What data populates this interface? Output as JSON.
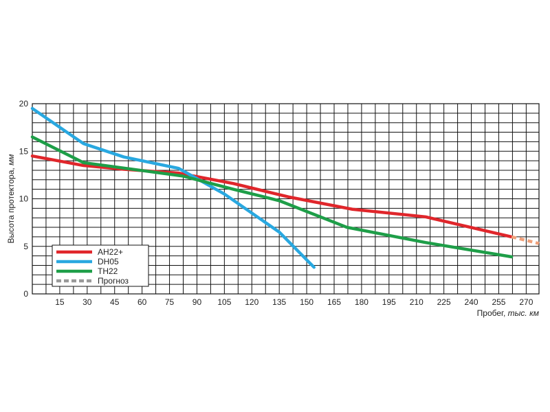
{
  "chart_data": {
    "type": "line",
    "title": "",
    "xlabel_main": "Пробег, ",
    "xlabel_unit": "тыс. км",
    "ylabel_main": "Высота протектора, ",
    "ylabel_unit": "мм",
    "xlim": [
      0,
      277
    ],
    "ylim": [
      0,
      20
    ],
    "x_ticks": [
      15,
      30,
      45,
      60,
      75,
      90,
      105,
      120,
      135,
      150,
      165,
      180,
      195,
      210,
      225,
      240,
      255,
      270
    ],
    "y_ticks": [
      0,
      5,
      10,
      15,
      20
    ],
    "grid": {
      "x_step": 7.5,
      "y_step": 1
    },
    "legend_position": "bottom-left",
    "series": [
      {
        "name": "AH22+",
        "color": "#e0262b",
        "style": "solid",
        "x": [
          0,
          28,
          50,
          80,
          110,
          140,
          175,
          215,
          262
        ],
        "y": [
          14.5,
          13.5,
          13.1,
          12.7,
          11.6,
          10.2,
          8.9,
          8.1,
          6.0
        ]
      },
      {
        "name": "DH05",
        "color": "#29a8e0",
        "style": "solid",
        "x": [
          0,
          28,
          50,
          80,
          105,
          135,
          154
        ],
        "y": [
          19.5,
          15.8,
          14.4,
          13.2,
          10.5,
          6.5,
          2.8
        ]
      },
      {
        "name": "TH22",
        "color": "#1e9e48",
        "style": "solid",
        "x": [
          0,
          28,
          55,
          82,
          110,
          135,
          172,
          215,
          262
        ],
        "y": [
          16.5,
          13.8,
          13.1,
          12.4,
          11.0,
          9.8,
          7.0,
          5.4,
          3.9
        ]
      },
      {
        "name": "Прогноз",
        "color": "#999999",
        "style": "dashed",
        "x": [],
        "y": []
      }
    ],
    "forecast_segment": {
      "color": "#f0a07a",
      "x": [
        262,
        277
      ],
      "y": [
        6.0,
        5.3
      ]
    }
  }
}
